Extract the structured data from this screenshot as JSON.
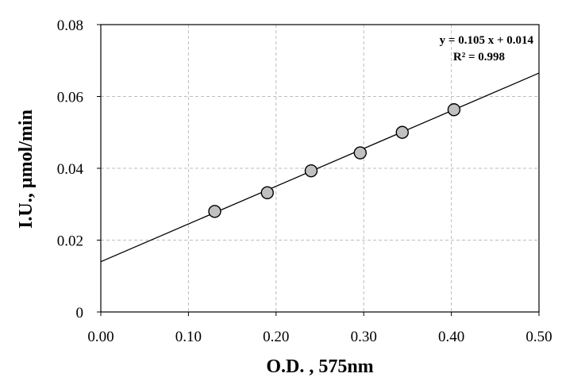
{
  "chart_data": {
    "type": "scatter",
    "xlabel": "O.D. , 575nm",
    "ylabel": "I.U., µmol/min",
    "xlim": [
      0,
      0.5
    ],
    "ylim": [
      0,
      0.08
    ],
    "x_ticks": [
      "0.00",
      "0.10",
      "0.20",
      "0.30",
      "0.40",
      "0.50"
    ],
    "y_ticks": [
      "0",
      "0.02",
      "0.04",
      "0.06",
      "0.08"
    ],
    "grid": true,
    "points": [
      {
        "x": 0.13,
        "y": 0.028
      },
      {
        "x": 0.19,
        "y": 0.0332
      },
      {
        "x": 0.24,
        "y": 0.0393
      },
      {
        "x": 0.296,
        "y": 0.0443
      },
      {
        "x": 0.344,
        "y": 0.05
      },
      {
        "x": 0.403,
        "y": 0.0563
      }
    ],
    "trendline": {
      "slope": 0.105,
      "intercept": 0.014
    },
    "annotations": {
      "equation": "y = 0.105 x + 0.014",
      "r2": "R² = 0.998"
    },
    "colors": {
      "marker_fill": "#c0c0c0",
      "marker_stroke": "#000000",
      "line": "#000000",
      "grid": "#bdbdbd"
    }
  }
}
